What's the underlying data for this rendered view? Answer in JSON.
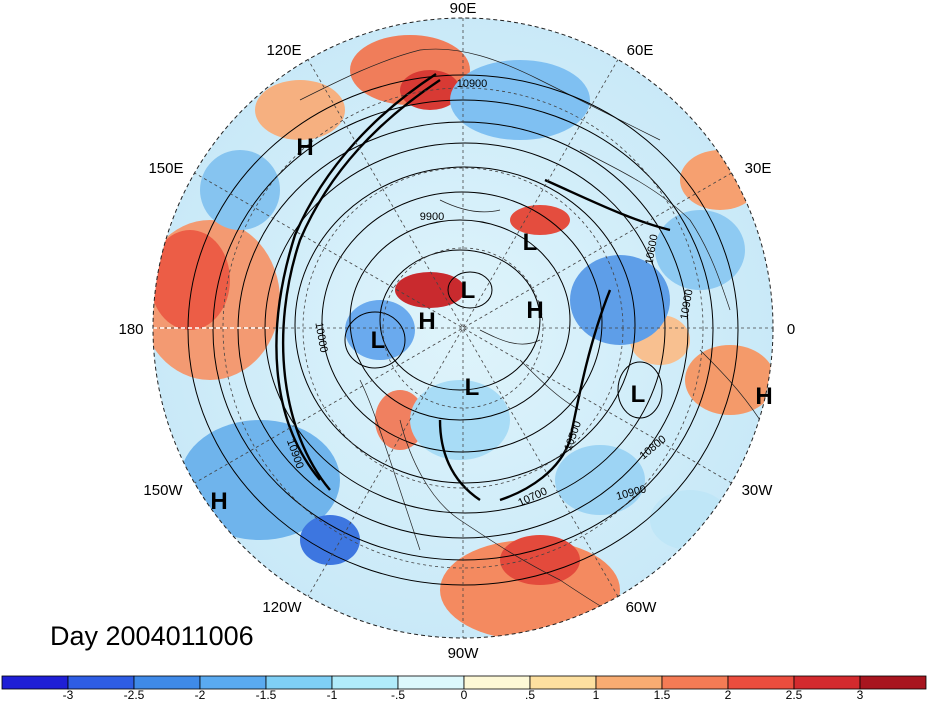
{
  "title": "Day 2004011006",
  "longitude_labels": [
    "90E",
    "60E",
    "30E",
    "0",
    "30W",
    "60W",
    "90W",
    "120W",
    "150W",
    "180",
    "150E",
    "120E"
  ],
  "pressure_centers": {
    "highs": [
      "H",
      "H",
      "H",
      "H",
      "H"
    ],
    "lows": [
      "L",
      "L",
      "L",
      "L",
      "L"
    ]
  },
  "contour_labels": [
    "10900",
    "9900",
    "10600",
    "10900",
    "10500",
    "10800",
    "10700",
    "10900",
    "10000",
    "10900"
  ],
  "colorbar": {
    "ticks": [
      "-3",
      "-2.5",
      "-2",
      "-1.5",
      "-1",
      "-.5",
      "0",
      ".5",
      "1",
      "1.5",
      "2",
      "2.5",
      "3"
    ],
    "colors": [
      "#1f1fd6",
      "#2e5de4",
      "#3f8ae8",
      "#5aaaf0",
      "#7fcff5",
      "#b1ecfb",
      "#dcf8fc",
      "#fdf8d6",
      "#fde0a0",
      "#f8ac72",
      "#f47b55",
      "#eb4d3e",
      "#d32a2e",
      "#a8151f"
    ]
  },
  "map": {
    "projection": "north polar stereographic",
    "field_colors": {
      "ocean_warm": "#f3a47a",
      "ocean_cool": "#8fc8f0",
      "neutral": "#e8f6fb"
    }
  }
}
